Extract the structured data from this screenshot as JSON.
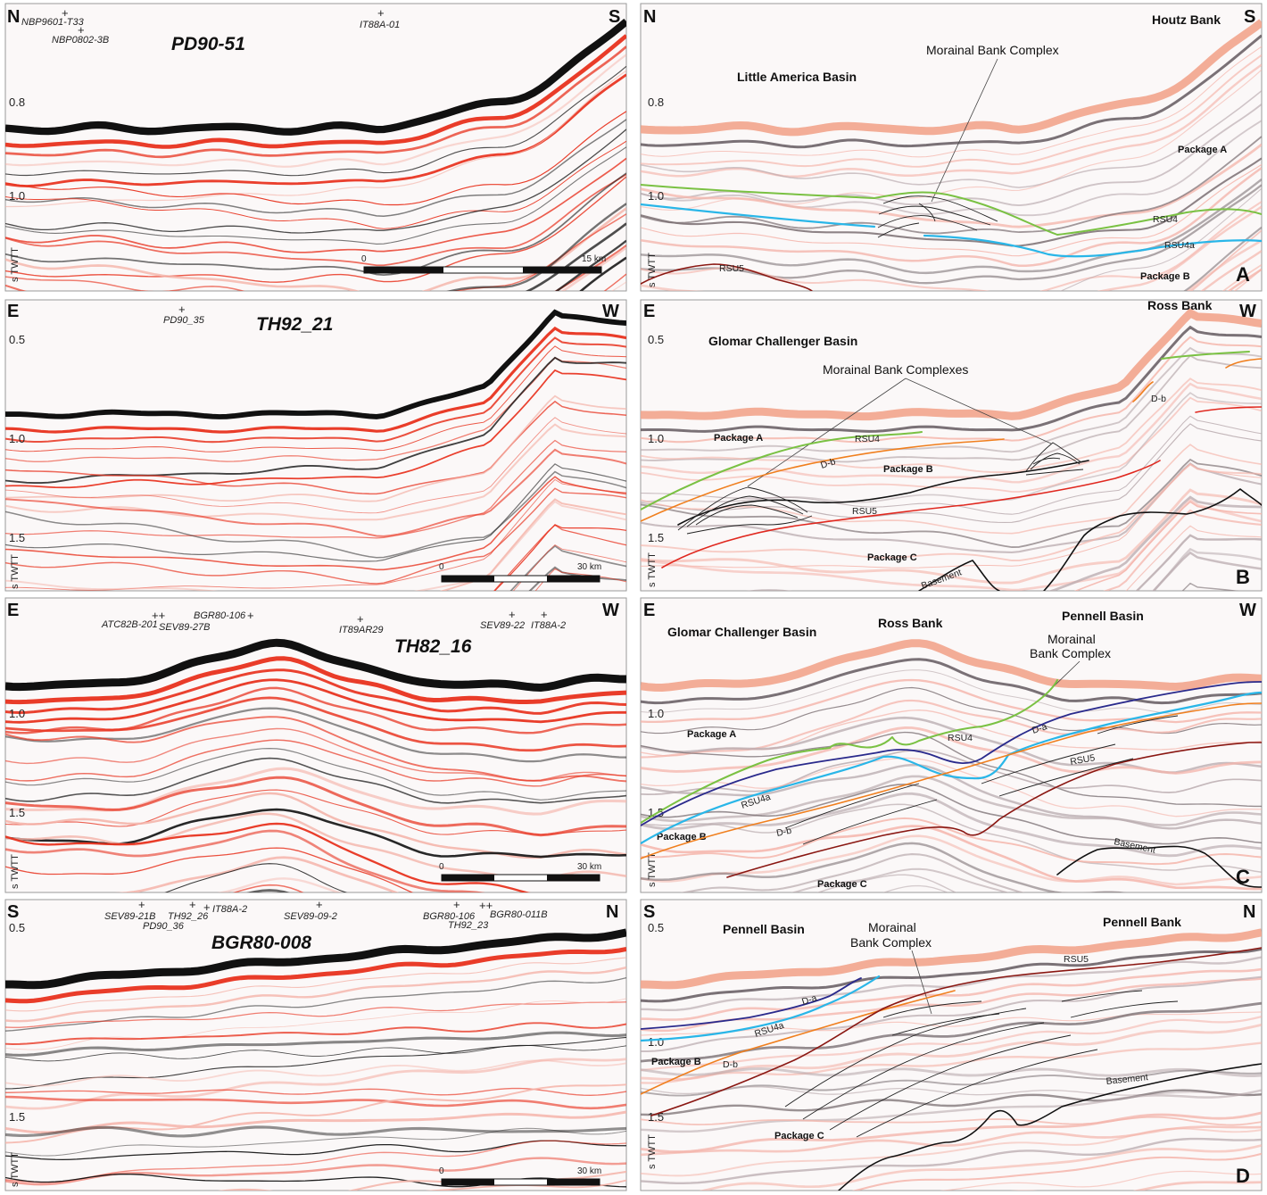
{
  "figure": {
    "scale_bar": {
      "start_label": "0"
    },
    "axis_label": "s TWTT"
  },
  "panels": {
    "A": {
      "raw": {
        "title": "PD90-51",
        "dir_left": "N",
        "dir_right": "S",
        "stations": [
          "NBP9601-T33",
          "NBP0802-3B",
          "IT88A-01"
        ],
        "ticks": [
          "0.8",
          "1.0"
        ],
        "scale_end": "15 km"
      },
      "interp": {
        "dir_left": "N",
        "dir_right": "S",
        "letter": "A",
        "ticks": [
          "0.8",
          "1.0"
        ],
        "regions": [
          "Houtz Bank",
          "Little America Basin"
        ],
        "annotation": "Morainal Bank Complex",
        "packages": [
          "Package A",
          "Package B"
        ],
        "horizons": [
          "RSU4",
          "RSU4a",
          "RSU5"
        ]
      }
    },
    "B": {
      "raw": {
        "title": "TH92_21",
        "dir_left": "E",
        "dir_right": "W",
        "stations": [
          "PD90_35"
        ],
        "ticks": [
          "0.5",
          "1.0",
          "1.5"
        ],
        "scale_end": "30 km"
      },
      "interp": {
        "dir_left": "E",
        "dir_right": "W",
        "letter": "B",
        "ticks": [
          "0.5",
          "1.0",
          "1.5"
        ],
        "regions": [
          "Ross Bank",
          "Glomar Challenger Basin"
        ],
        "annotation": "Morainal Bank Complexes",
        "packages": [
          "Package A",
          "Package B",
          "Package C"
        ],
        "horizons": [
          "RSU4",
          "D-b",
          "D-b",
          "RSU5",
          "Basement"
        ]
      }
    },
    "C": {
      "raw": {
        "title": "TH82_16",
        "dir_left": "E",
        "dir_right": "W",
        "stations": [
          "ATC82B-201",
          "SEV89-27B",
          "BGR80-106",
          "IT89AR29",
          "SEV89-22",
          "IT88A-2"
        ],
        "ticks": [
          "1.0",
          "1.5"
        ],
        "scale_end": "30 km"
      },
      "interp": {
        "dir_left": "E",
        "dir_right": "W",
        "letter": "C",
        "ticks": [
          "1.0",
          "1.5"
        ],
        "regions": [
          "Glomar Challenger Basin",
          "Ross Bank",
          "Pennell Basin"
        ],
        "annotation": [
          "Morainal",
          "Bank Complex"
        ],
        "packages": [
          "Package A",
          "Package B",
          "Package C"
        ],
        "horizons": [
          "RSU4",
          "D-a",
          "RSU4a",
          "D-b",
          "RSU5",
          "Basement"
        ]
      }
    },
    "D": {
      "raw": {
        "title": "BGR80-008",
        "dir_left": "S",
        "dir_right": "N",
        "stations": [
          "SEV89-21B",
          "TH92_26",
          "PD90_36",
          "IT88A-2",
          "SEV89-09-2",
          "BGR80-106",
          "BGR80-011B",
          "TH92_23"
        ],
        "ticks": [
          "0.5",
          "1.5"
        ],
        "scale_end": "30 km"
      },
      "interp": {
        "dir_left": "S",
        "dir_right": "N",
        "letter": "D",
        "ticks": [
          "0.5",
          "1.0",
          "1.5"
        ],
        "regions": [
          "Pennell Basin",
          "Pennell Bank"
        ],
        "annotation": [
          "Morainal",
          "Bank Complex"
        ],
        "packages": [
          "Package B",
          "Package C"
        ],
        "horizons": [
          "D-a",
          "RSU4a",
          "D-b",
          "RSU5",
          "Basement"
        ]
      }
    }
  },
  "colors": {
    "rsu4": "#7ac143",
    "rsu4a": "#29b6e8",
    "rsu5_red": "#e0281f",
    "rsu5_dark": "#8a1712",
    "db": "#f07f1e",
    "da": "#2a2a8c",
    "basement": "#111111",
    "seismic_red": "#e8321e",
    "seismic_black": "#111111",
    "seismic_pink": "#f4b4aa",
    "seabed_salmon": "#f2a48c"
  }
}
